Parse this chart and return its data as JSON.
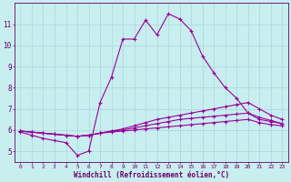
{
  "xlabel": "Windchill (Refroidissement éolien,°C)",
  "x_values": [
    0,
    1,
    2,
    3,
    4,
    5,
    6,
    7,
    8,
    9,
    10,
    11,
    12,
    13,
    14,
    15,
    16,
    17,
    18,
    19,
    20,
    21,
    22,
    23
  ],
  "line1": [
    5.9,
    5.75,
    5.6,
    5.5,
    5.4,
    4.8,
    5.0,
    7.3,
    8.5,
    10.3,
    10.3,
    11.2,
    10.5,
    11.5,
    11.25,
    10.7,
    9.5,
    8.7,
    8.0,
    7.5,
    6.8,
    6.5,
    6.4,
    6.3
  ],
  "line2": [
    5.95,
    5.9,
    5.85,
    5.8,
    5.75,
    5.7,
    5.75,
    5.85,
    5.95,
    6.05,
    6.2,
    6.35,
    6.5,
    6.6,
    6.7,
    6.8,
    6.9,
    7.0,
    7.1,
    7.2,
    7.3,
    7.0,
    6.7,
    6.5
  ],
  "line3": [
    5.95,
    5.9,
    5.85,
    5.8,
    5.75,
    5.7,
    5.75,
    5.85,
    5.95,
    6.0,
    6.1,
    6.2,
    6.3,
    6.4,
    6.5,
    6.55,
    6.6,
    6.65,
    6.7,
    6.75,
    6.8,
    6.6,
    6.45,
    6.3
  ],
  "line4": [
    5.95,
    5.9,
    5.85,
    5.8,
    5.75,
    5.7,
    5.75,
    5.85,
    5.9,
    5.95,
    6.0,
    6.05,
    6.1,
    6.15,
    6.2,
    6.25,
    6.3,
    6.35,
    6.4,
    6.45,
    6.5,
    6.35,
    6.25,
    6.2
  ],
  "ylim": [
    4.5,
    12.0
  ],
  "xlim": [
    -0.5,
    23.5
  ],
  "bg_color": "#c8eef0",
  "line_color": "#990099",
  "grid_color": "#a8d8da",
  "label_color": "#660066",
  "tick_color": "#660066"
}
